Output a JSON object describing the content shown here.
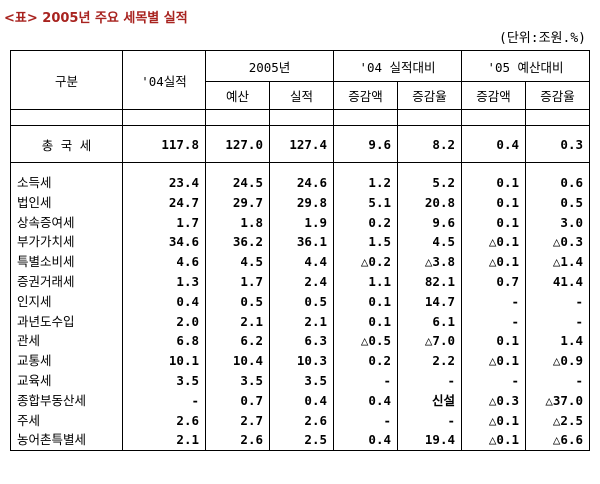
{
  "title": "<표> 2005년 주요 세목별 실적",
  "unit": "(단위:조원.%)",
  "headers": {
    "category": "구분",
    "y04": "'04실적",
    "y2005": "2005년",
    "budget": "예산",
    "actual": "실적",
    "vs04": "'04 실적대비",
    "vs05": "'05 예산대비",
    "inc_amt": "증감액",
    "inc_rate": "증감율"
  },
  "total": {
    "name": "총 국 세",
    "values": [
      "117.8",
      "127.0",
      "127.4",
      "9.6",
      "8.2",
      "0.4",
      "0.3"
    ]
  },
  "rows": [
    {
      "name": "소득세",
      "values": [
        "23.4",
        "24.5",
        "24.6",
        "1.2",
        "5.2",
        "0.1",
        "0.6"
      ]
    },
    {
      "name": "법인세",
      "values": [
        "24.7",
        "29.7",
        "29.8",
        "5.1",
        "20.8",
        "0.1",
        "0.5"
      ]
    },
    {
      "name": "상속증여세",
      "values": [
        "1.7",
        "1.8",
        "1.9",
        "0.2",
        "9.6",
        "0.1",
        "3.0"
      ]
    },
    {
      "name": "부가가치세",
      "values": [
        "34.6",
        "36.2",
        "36.1",
        "1.5",
        "4.5",
        "△0.1",
        "△0.3"
      ]
    },
    {
      "name": "특별소비세",
      "values": [
        "4.6",
        "4.5",
        "4.4",
        "△0.2",
        "△3.8",
        "△0.1",
        "△1.4"
      ]
    },
    {
      "name": "증권거래세",
      "values": [
        "1.3",
        "1.7",
        "2.4",
        "1.1",
        "82.1",
        "0.7",
        "41.4"
      ]
    },
    {
      "name": "인지세",
      "values": [
        "0.4",
        "0.5",
        "0.5",
        "0.1",
        "14.7",
        "-",
        "-"
      ]
    },
    {
      "name": "과년도수입",
      "values": [
        "2.0",
        "2.1",
        "2.1",
        "0.1",
        "6.1",
        "-",
        "-"
      ]
    },
    {
      "name": "관세",
      "values": [
        "6.8",
        "6.2",
        "6.3",
        "△0.5",
        "△7.0",
        "0.1",
        "1.4"
      ]
    },
    {
      "name": "교통세",
      "values": [
        "10.1",
        "10.4",
        "10.3",
        "0.2",
        "2.2",
        "△0.1",
        "△0.9"
      ]
    },
    {
      "name": "교육세",
      "values": [
        "3.5",
        "3.5",
        "3.5",
        "-",
        "-",
        "-",
        "-"
      ]
    },
    {
      "name": "종합부동산세",
      "values": [
        "-",
        "0.7",
        "0.4",
        "0.4",
        "신설",
        "△0.3",
        "△37.0"
      ]
    },
    {
      "name": "주세",
      "values": [
        "2.6",
        "2.7",
        "2.6",
        "-",
        "-",
        "△0.1",
        "△2.5"
      ]
    },
    {
      "name": "농어촌특별세",
      "values": [
        "2.1",
        "2.6",
        "2.5",
        "0.4",
        "19.4",
        "△0.1",
        "△6.6"
      ]
    }
  ]
}
